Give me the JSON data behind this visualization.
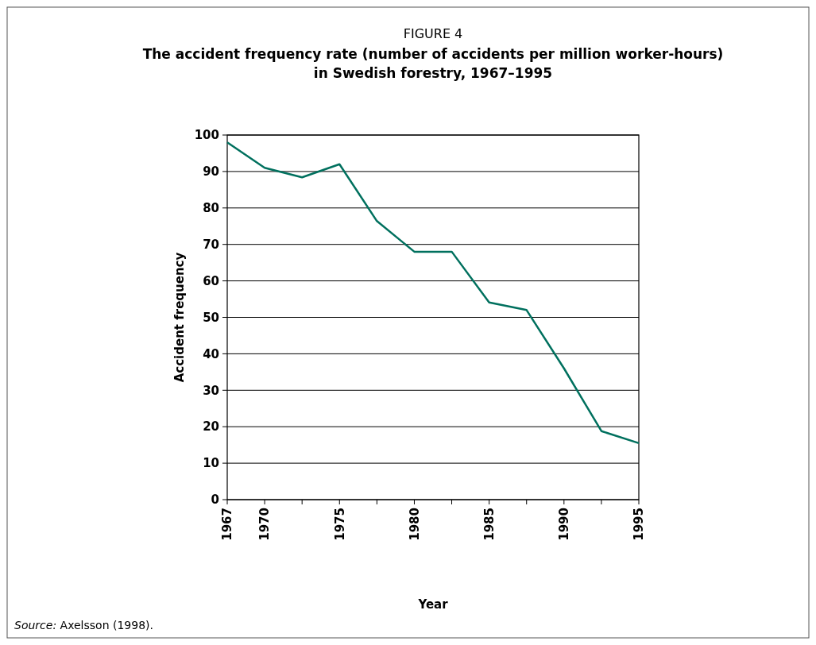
{
  "chart_data": {
    "type": "line",
    "title": "FIGURE 4",
    "subtitle": "The accident frequency rate (number of accidents per million worker-hours) in Swedish forestry, 1967–1995",
    "xlabel": "Year",
    "ylabel": "Accident frequency",
    "categories": [
      "1967",
      "1970",
      null,
      "1975",
      null,
      "1980",
      null,
      "1985",
      null,
      "1990",
      null,
      "1995"
    ],
    "series": [
      {
        "color": "#00705e",
        "values": [
          98,
          91,
          88.4,
          92,
          76.4,
          68,
          68,
          54.1,
          52,
          36,
          18.8,
          15.5
        ]
      }
    ],
    "ylim": [
      0,
      100
    ],
    "yticks": [
      0,
      10,
      20,
      30,
      40,
      50,
      60,
      70,
      80,
      90,
      100
    ],
    "grid": "y",
    "marker": "none",
    "line_style": "solid",
    "annotations": [
      "Source: Axelsson (1998)."
    ]
  }
}
